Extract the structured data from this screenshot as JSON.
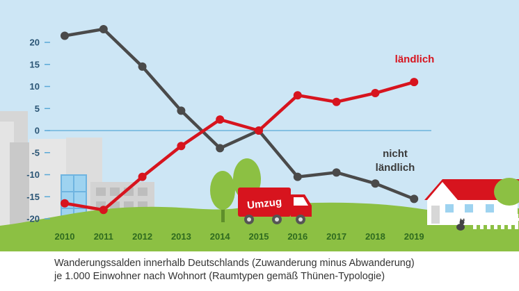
{
  "caption": {
    "line1": "Wanderungssalden innerhalb Deutschlands (Zuwanderung minus Abwanderung)",
    "line2": "je 1.000 Einwohner nach Wohnort (Raumtypen gemäß Thünen-Typologie)"
  },
  "truck_label": "Umzug",
  "colors": {
    "sky": "#cde6f5",
    "grass": "#8cc043",
    "rural": "#d7141e",
    "nonrural": "#4a4a4a",
    "zero_line": "#5aa9d6"
  },
  "chart_data": {
    "type": "line",
    "title": "Wanderungssalden innerhalb Deutschlands (Zuwanderung minus Abwanderung) je 1.000 Einwohner nach Wohnort (Raumtypen gemäß Thünen-Typologie)",
    "xlabel": "",
    "ylabel": "",
    "categories": [
      "2010",
      "2011",
      "2012",
      "2013",
      "2014",
      "2015",
      "2016",
      "2017",
      "2018",
      "2019"
    ],
    "yticks": [
      20,
      15,
      10,
      5,
      0,
      -5,
      -10,
      -15,
      -20
    ],
    "ylim": [
      -20.5,
      24
    ],
    "grid": false,
    "legend": "inline labels at line ends",
    "series": [
      {
        "name": "ländlich",
        "label_lines": [
          "ländlich"
        ],
        "color": "#d7141e",
        "values": [
          -16.5,
          -18,
          -10.5,
          -3.5,
          2.5,
          0,
          8,
          6.5,
          8.5,
          11
        ]
      },
      {
        "name": "nicht ländlich",
        "label_lines": [
          "nicht",
          "ländlich"
        ],
        "color": "#4a4a4a",
        "values": [
          21.5,
          23,
          14.5,
          4.5,
          -4,
          0,
          -10.5,
          -9.5,
          -12,
          -15.5
        ]
      }
    ]
  }
}
